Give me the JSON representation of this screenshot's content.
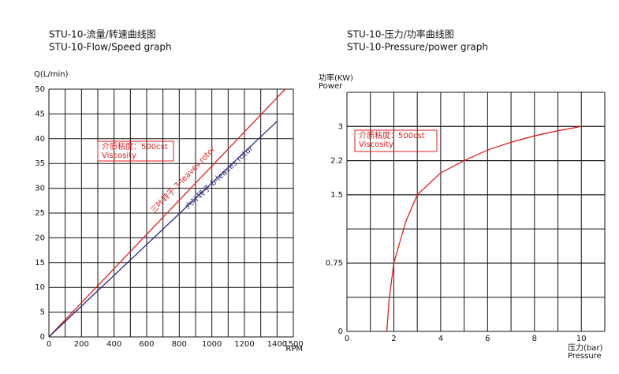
{
  "chart_data": [
    {
      "type": "line",
      "title": "STU-10-流量/转速曲线图",
      "subtitle": "STU-10-Flow/Speed graph",
      "y_label": [
        "Q(L/min)"
      ],
      "x_label": [
        "RPM"
      ],
      "xlim": [
        0,
        1500
      ],
      "xticks": [
        0,
        200,
        400,
        600,
        800,
        1000,
        1200,
        1400,
        1500
      ],
      "xgrid": [
        0,
        100,
        200,
        300,
        400,
        500,
        600,
        700,
        800,
        900,
        1000,
        1100,
        1200,
        1300,
        1400,
        1500
      ],
      "ylim": [
        0,
        50
      ],
      "yticks": [
        0,
        5,
        10,
        15,
        20,
        25,
        30,
        35,
        40,
        45,
        50
      ],
      "grid": true,
      "annotation": [
        "介质粘度：500cst",
        "Viscosity"
      ],
      "annotation_color": "#e02020",
      "series": [
        {
          "name": "三叶转子 3-leaves rotor",
          "color": "#e02020",
          "x": [
            0,
            1450
          ],
          "values": [
            0,
            50
          ]
        },
        {
          "name": "六叶转子 6-leaves rotor",
          "color": "#2a2a7a",
          "x": [
            0,
            1400
          ],
          "values": [
            0,
            43.5
          ]
        }
      ]
    },
    {
      "type": "line",
      "title": "STU-10-压力/功率曲线图",
      "subtitle": "STU-10-Pressure/power graph",
      "y_label": [
        "功率(KW)",
        "Power"
      ],
      "x_label": [
        "压力(bar)",
        "Pressure"
      ],
      "xlim": [
        0,
        11
      ],
      "xticks": [
        0,
        2,
        4,
        6,
        8,
        10
      ],
      "xgrid": [
        0,
        1,
        2,
        3,
        4,
        5,
        6,
        7,
        8,
        9,
        10,
        11
      ],
      "ylim": [
        0,
        3.8
      ],
      "yticks": [
        0,
        0.75,
        1.5,
        2.2,
        3
      ],
      "y_scale": "stepped",
      "grid": true,
      "annotation": [
        "介质粘度：500cst",
        "Viscosity"
      ],
      "annotation_color": "#e02020",
      "series": [
        {
          "color": "#e02020",
          "x": [
            1.7,
            1.8,
            1.9,
            2,
            2.5,
            3,
            4,
            5,
            6,
            7,
            8,
            9,
            10
          ],
          "values": [
            0,
            0.35,
            0.55,
            0.75,
            1.2,
            1.5,
            1.95,
            2.2,
            2.45,
            2.63,
            2.78,
            2.9,
            3
          ]
        }
      ]
    }
  ]
}
